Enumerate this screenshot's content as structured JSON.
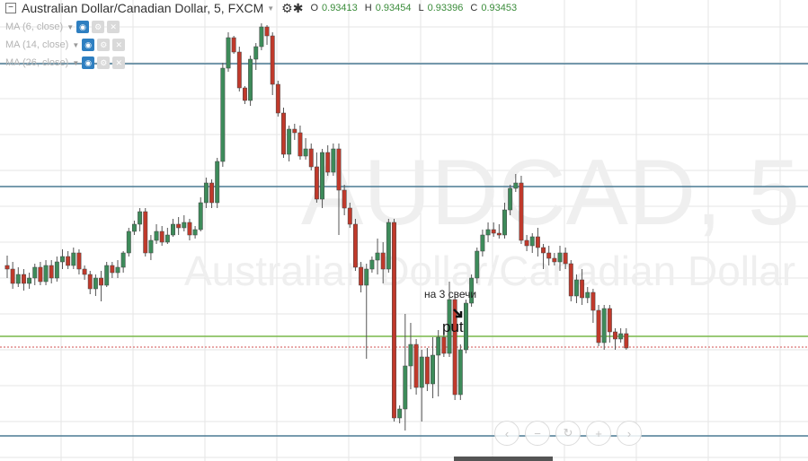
{
  "header": {
    "title": "Australian Dollar/Canadian Dollar, 5, FXCM",
    "ohlc": [
      {
        "label": "O",
        "value": "0.93413"
      },
      {
        "label": "H",
        "value": "0.93454"
      },
      {
        "label": "L",
        "value": "0.93396"
      },
      {
        "label": "C",
        "value": "0.93453"
      }
    ]
  },
  "indicators": [
    {
      "label": "MA (6, close)"
    },
    {
      "label": "MA (14, close)"
    },
    {
      "label": "MA (26, close)"
    }
  ],
  "watermark": {
    "symbol": "AUDCAD, 5",
    "name": "Australian Dollar/Canadian Dollar"
  },
  "annotations": {
    "note": "на 3 свечи",
    "signal": "put"
  },
  "colors": {
    "up": "#3d8b5a",
    "down": "#c0392b",
    "level_line": "#4a7a93",
    "support_line": "#79b94a",
    "price_line": "#d05050",
    "grid": "#e6e6e6",
    "eye_icon": "#2e7fc1"
  },
  "icons": [
    "collapse-icon",
    "settings-icon",
    "close-icon",
    "eye-icon",
    "gear-icon",
    "chevron-left-icon",
    "minus-icon",
    "reset-icon",
    "plus-icon",
    "chevron-right-icon"
  ]
}
